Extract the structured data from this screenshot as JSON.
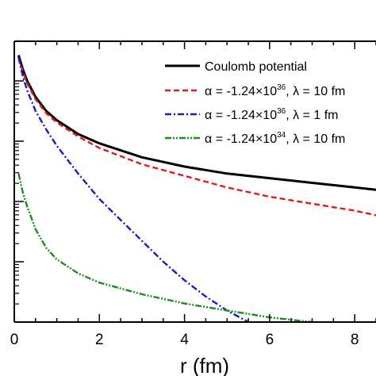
{
  "chart_data": {
    "type": "line",
    "xlabel": "r (fm)",
    "ylabel": "",
    "xlim": [
      0,
      8.5
    ],
    "ylim": [
      0,
      1.21
    ],
    "y_log_like_minor_ticks": true,
    "grid": false,
    "legend_position": "top-right",
    "x_ticks": [
      "0",
      "2",
      "4",
      "6",
      "8"
    ],
    "series": [
      {
        "name": "Coulomb potential",
        "legend_parts": {
          "text": "Coulomb potential"
        },
        "color": "#000000",
        "dash": "solid",
        "x": [
          0.1,
          0.2,
          0.3,
          0.5,
          0.75,
          1.0,
          1.5,
          2.0,
          3.0,
          4.0,
          5.0,
          6.0,
          7.0,
          8.0,
          8.5
        ],
        "y": [
          1.15,
          1.09,
          1.04,
          0.97,
          0.91,
          0.87,
          0.81,
          0.77,
          0.71,
          0.67,
          0.64,
          0.62,
          0.6,
          0.58,
          0.57
        ]
      },
      {
        "name": "α = -1.24×10^36, λ = 10 fm",
        "legend_parts": {
          "greek": "α",
          "pre": " = -1.24×10",
          "exp": "36",
          "post": ", ",
          "greek2": "λ",
          "tail": " = 10 fm"
        },
        "color": "#e41a1c",
        "dash": "dashed",
        "x": [
          0.1,
          0.2,
          0.3,
          0.5,
          0.75,
          1.0,
          1.5,
          2.0,
          3.0,
          4.0,
          5.0,
          6.0,
          7.0,
          8.0,
          8.5
        ],
        "y": [
          1.14,
          1.08,
          1.03,
          0.96,
          0.9,
          0.86,
          0.8,
          0.75,
          0.68,
          0.63,
          0.58,
          0.54,
          0.51,
          0.48,
          0.46
        ]
      },
      {
        "name": "α = -1.24×10^36, λ = 1 fm",
        "legend_parts": {
          "greek": "α",
          "pre": " = -1.24×10",
          "exp": "36",
          "post": ", ",
          "greek2": "λ",
          "tail": " = 1 fm"
        },
        "color": "#1a1acc",
        "dash": "dashdot",
        "x": [
          0.1,
          0.2,
          0.3,
          0.5,
          0.75,
          1.0,
          1.5,
          2.0,
          2.5,
          3.0,
          3.5,
          4.0,
          4.5,
          5.0,
          5.5
        ],
        "y": [
          1.14,
          1.06,
          1.0,
          0.91,
          0.83,
          0.76,
          0.64,
          0.53,
          0.44,
          0.35,
          0.26,
          0.18,
          0.11,
          0.05,
          0.0
        ]
      },
      {
        "name": "α = -1.24×10^34, λ = 10 fm",
        "legend_parts": {
          "greek": "α",
          "pre": " = -1.24×10",
          "exp": "34",
          "post": ", ",
          "greek2": "λ",
          "tail": " = 10 fm"
        },
        "color": "#1e8c1e",
        "dash": "dashdotdot",
        "x": [
          0.1,
          0.2,
          0.3,
          0.5,
          0.75,
          1.0,
          1.5,
          2.0,
          3.0,
          4.0,
          5.0,
          6.0,
          6.5,
          7.0
        ],
        "y": [
          0.64,
          0.56,
          0.5,
          0.4,
          0.32,
          0.27,
          0.21,
          0.17,
          0.12,
          0.08,
          0.05,
          0.02,
          0.01,
          0.0
        ]
      }
    ]
  }
}
